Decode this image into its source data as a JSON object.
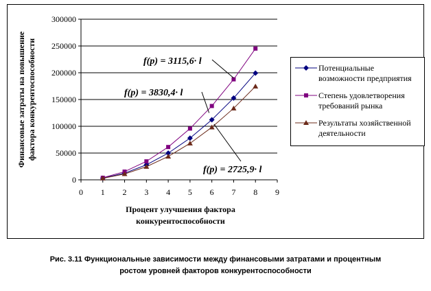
{
  "chart_data": {
    "type": "line",
    "ylabel": "Финансовые затраты на повышение фактора конкурентоспособности",
    "xlabel": "Процент улучшения фактора конкурентоспособности",
    "xlim": [
      0,
      9
    ],
    "ylim": [
      0,
      300000
    ],
    "x_ticks": [
      "0",
      "1",
      "2",
      "3",
      "4",
      "5",
      "6",
      "7",
      "8",
      "9"
    ],
    "y_ticks": [
      "0",
      "50000",
      "100000",
      "150000",
      "200000",
      "250000",
      "300000"
    ],
    "x": [
      1,
      2,
      3,
      4,
      5,
      6,
      7,
      8
    ],
    "series": [
      {
        "name": "Потенциальные возможности предприятия",
        "color": "#00007f",
        "marker": "diamond",
        "values": [
          3116,
          12462,
          28040,
          49849,
          77890,
          112162,
          152665,
          199398
        ]
      },
      {
        "name": "Степень удовлетворения требований рынка",
        "color": "#7f007f",
        "marker": "square",
        "values": [
          3830,
          15322,
          34474,
          61286,
          95760,
          137894,
          187690,
          245146
        ]
      },
      {
        "name": "Результаты хозяйственной деятельности",
        "color": "#6b2a1a",
        "marker": "triangle",
        "values": [
          2726,
          10904,
          24533,
          43614,
          68148,
          98132,
          133569,
          174458
        ]
      }
    ],
    "grid": "horizontal",
    "legend_position": "right",
    "annotations": [
      "f(p) = 3115,6· l",
      "f(p) = 3830,4· l",
      "f(p) = 2725,9· l"
    ]
  },
  "legend": {
    "lines": [
      [
        "Потенциальные",
        "возможности предприятия"
      ],
      [
        "Степень удовлетворения",
        "требований рынка"
      ],
      [
        "Результаты хозяйственной",
        "деятельности"
      ]
    ]
  },
  "caption": {
    "line1": "Рис. 3.11 Функциональные зависимости между финансовыми затратами и процентным",
    "line2": "ростом уровней факторов конкурентоспособности"
  },
  "axis_title_lines": {
    "y": [
      "Финансовые затраты на повышение",
      "фактора конкурентоспособности"
    ],
    "x": [
      "Процент улучшения фактора",
      "конкурентоспособности"
    ]
  }
}
